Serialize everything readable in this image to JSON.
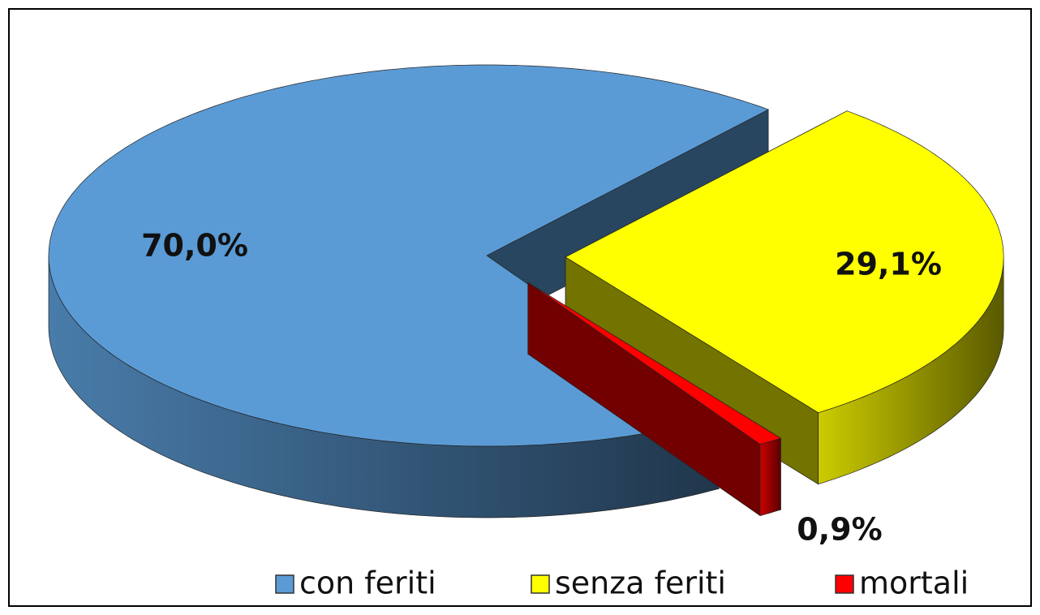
{
  "chart_data": {
    "type": "pie3d",
    "categories": [
      "con feriti",
      "senza feriti",
      "mortali"
    ],
    "values": [
      70.0,
      29.1,
      0.9
    ],
    "value_labels": [
      "70,0%",
      "29,1%",
      "0,9%"
    ],
    "colors": [
      "#5b9bd5",
      "#ffff00",
      "#ff0000"
    ],
    "legend": "bottom"
  }
}
